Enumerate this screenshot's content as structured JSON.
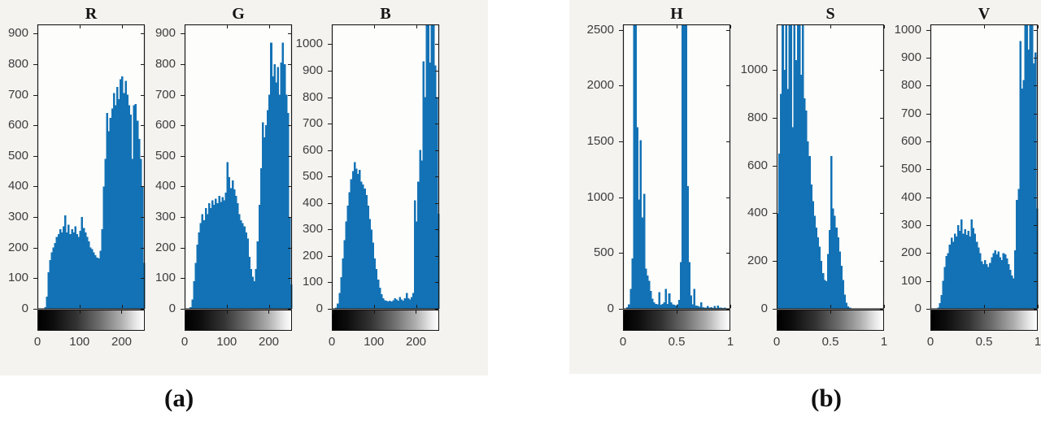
{
  "figure": {
    "captions": {
      "a": "(a)",
      "b": "(b)"
    },
    "colors": {
      "bar": "#1372b5",
      "axis": "#1a1a1a",
      "tick_label": "#3d3d3d",
      "group_bg": "#f5f3f0",
      "plot_bg": "#fdfdfc",
      "colorbar_start": "#000000",
      "colorbar_end": "#ffffff"
    }
  },
  "chart_data": [
    {
      "id": "R",
      "title": "R",
      "group": "a",
      "type": "bar",
      "subtype": "intensity-histogram",
      "xlim": [
        0,
        255
      ],
      "xticks": [
        0,
        100,
        200
      ],
      "ylim": [
        0,
        930
      ],
      "yticks": [
        0,
        100,
        200,
        300,
        400,
        500,
        600,
        700,
        800,
        900
      ],
      "colorbar": "grayscale-black-to-white",
      "bins": [
        0,
        0,
        0,
        0,
        5,
        40,
        120,
        160,
        185,
        200,
        215,
        235,
        245,
        260,
        250,
        270,
        305,
        250,
        275,
        245,
        260,
        250,
        270,
        245,
        235,
        255,
        300,
        265,
        250,
        235,
        220,
        200,
        195,
        185,
        175,
        168,
        165,
        190,
        260,
        400,
        490,
        640,
        580,
        625,
        655,
        705,
        665,
        725,
        685,
        750,
        760,
        705,
        745,
        700,
        665,
        635,
        490,
        665,
        670,
        615,
        555,
        490,
        400,
        150
      ]
    },
    {
      "id": "G",
      "title": "G",
      "group": "a",
      "type": "bar",
      "subtype": "intensity-histogram",
      "xlim": [
        0,
        255
      ],
      "xticks": [
        0,
        100,
        200
      ],
      "ylim": [
        0,
        930
      ],
      "yticks": [
        0,
        100,
        200,
        300,
        400,
        500,
        600,
        700,
        800,
        900
      ],
      "colorbar": "grayscale-black-to-white",
      "bins": [
        0,
        0,
        0,
        5,
        30,
        90,
        150,
        210,
        250,
        280,
        310,
        290,
        330,
        310,
        345,
        330,
        355,
        340,
        360,
        345,
        370,
        350,
        365,
        355,
        380,
        480,
        430,
        395,
        420,
        390,
        370,
        345,
        310,
        290,
        280,
        270,
        250,
        230,
        170,
        130,
        105,
        90,
        130,
        220,
        340,
        460,
        610,
        560,
        600,
        650,
        700,
        870,
        760,
        800,
        740,
        790,
        700,
        805,
        870,
        800,
        700,
        640,
        300,
        80
      ]
    },
    {
      "id": "B",
      "title": "B",
      "group": "a",
      "type": "bar",
      "subtype": "intensity-histogram",
      "xlim": [
        0,
        255
      ],
      "xticks": [
        0,
        100,
        200
      ],
      "ylim": [
        0,
        1075
      ],
      "yticks": [
        0,
        100,
        200,
        300,
        400,
        500,
        600,
        700,
        800,
        900,
        1000
      ],
      "colorbar": "grayscale-black-to-white",
      "bins": [
        0,
        0,
        5,
        20,
        60,
        120,
        190,
        260,
        330,
        390,
        440,
        490,
        520,
        555,
        530,
        510,
        525,
        480,
        470,
        455,
        430,
        390,
        340,
        300,
        250,
        190,
        150,
        110,
        80,
        55,
        40,
        32,
        30,
        28,
        30,
        28,
        32,
        40,
        35,
        30,
        45,
        35,
        30,
        40,
        60,
        40,
        35,
        45,
        60,
        410,
        330,
        480,
        600,
        560,
        935,
        800,
        1075,
        1075,
        930,
        1075,
        1075,
        920,
        800,
        360
      ]
    },
    {
      "id": "H",
      "title": "H",
      "group": "b",
      "type": "bar",
      "subtype": "intensity-histogram",
      "xlim": [
        0,
        1
      ],
      "xticks": [
        0,
        0.5,
        1
      ],
      "ylim": [
        0,
        2550
      ],
      "yticks": [
        0,
        500,
        1000,
        1500,
        2000,
        2500
      ],
      "colorbar": "grayscale-black-to-white",
      "bins": [
        0,
        5,
        15,
        40,
        180,
        450,
        2550,
        2550,
        1630,
        980,
        1510,
        820,
        1030,
        360,
        300,
        250,
        160,
        90,
        60,
        45,
        40,
        150,
        35,
        45,
        60,
        180,
        45,
        140,
        60,
        40,
        35,
        30,
        40,
        80,
        420,
        2550,
        2550,
        2550,
        1100,
        420,
        120,
        40,
        180,
        30,
        25,
        20,
        60,
        15,
        12,
        10,
        25,
        10,
        15,
        8,
        25,
        8,
        30,
        10,
        12,
        8,
        10,
        5,
        5,
        3
      ]
    },
    {
      "id": "S",
      "title": "S",
      "group": "b",
      "type": "bar",
      "subtype": "intensity-histogram",
      "xlim": [
        0,
        1
      ],
      "xticks": [
        0,
        0.5,
        1
      ],
      "ylim": [
        0,
        1190
      ],
      "yticks": [
        0,
        200,
        400,
        600,
        800,
        1000
      ],
      "colorbar": "grayscale-black-to-white",
      "bins": [
        400,
        650,
        900,
        1190,
        1000,
        1190,
        920,
        1190,
        1190,
        760,
        1190,
        1040,
        1190,
        1190,
        980,
        1190,
        880,
        830,
        700,
        640,
        520,
        450,
        390,
        340,
        300,
        260,
        200,
        150,
        120,
        115,
        230,
        330,
        640,
        420,
        390,
        340,
        300,
        240,
        180,
        120,
        60,
        25,
        10,
        5,
        2,
        0,
        0,
        0,
        0,
        0,
        0,
        0,
        0,
        0,
        0,
        0,
        0,
        0,
        0,
        0,
        0,
        0,
        0,
        0
      ]
    },
    {
      "id": "V",
      "title": "V",
      "group": "b",
      "type": "bar",
      "subtype": "intensity-histogram",
      "xlim": [
        0,
        1
      ],
      "xticks": [
        0,
        0.5,
        1
      ],
      "ylim": [
        0,
        1020
      ],
      "yticks": [
        0,
        100,
        200,
        300,
        400,
        500,
        600,
        700,
        800,
        900,
        1000
      ],
      "colorbar": "grayscale-black-to-white",
      "bins": [
        0,
        0,
        0,
        0,
        5,
        20,
        50,
        100,
        150,
        190,
        200,
        230,
        255,
        240,
        270,
        260,
        300,
        280,
        320,
        270,
        285,
        265,
        280,
        260,
        320,
        290,
        270,
        240,
        220,
        200,
        170,
        160,
        175,
        160,
        150,
        165,
        185,
        200,
        210,
        195,
        205,
        185,
        175,
        200,
        195,
        180,
        160,
        140,
        120,
        110,
        210,
        390,
        430,
        960,
        790,
        820,
        1020,
        1020,
        930,
        1020,
        1020,
        880,
        920,
        360
      ]
    }
  ]
}
